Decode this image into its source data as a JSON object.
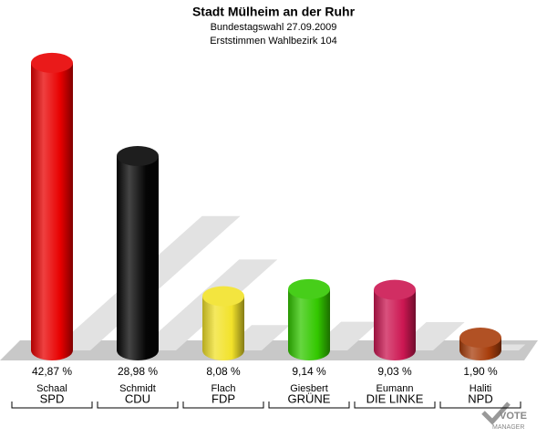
{
  "chart_data": {
    "type": "cylinder-bar",
    "title": "Stadt Mülheim an der Ruhr",
    "subtitle": "Bundestagswahl 27.09.2009",
    "subtitle2": "Erststimmen Wahlbezirk 104",
    "categories": [
      "SPD",
      "CDU",
      "FDP",
      "GRÜNE",
      "DIE LINKE",
      "NPD"
    ],
    "candidates": [
      "Schaal",
      "Schmidt",
      "Flach",
      "Giesbert",
      "Eumann",
      "Haliti"
    ],
    "values": [
      42.87,
      28.98,
      8.08,
      9.14,
      9.03,
      1.9
    ],
    "value_labels": [
      "42,87 %",
      "28,98 %",
      "8,08 %",
      "9,14 %",
      "9,03 %",
      "1,90 %"
    ],
    "colors": [
      "#e80000",
      "#050505",
      "#f2e22a",
      "#33c800",
      "#cc1752",
      "#a83e0c"
    ]
  },
  "logo": {
    "line1": "VOTE",
    "line2": "MANAGER"
  }
}
